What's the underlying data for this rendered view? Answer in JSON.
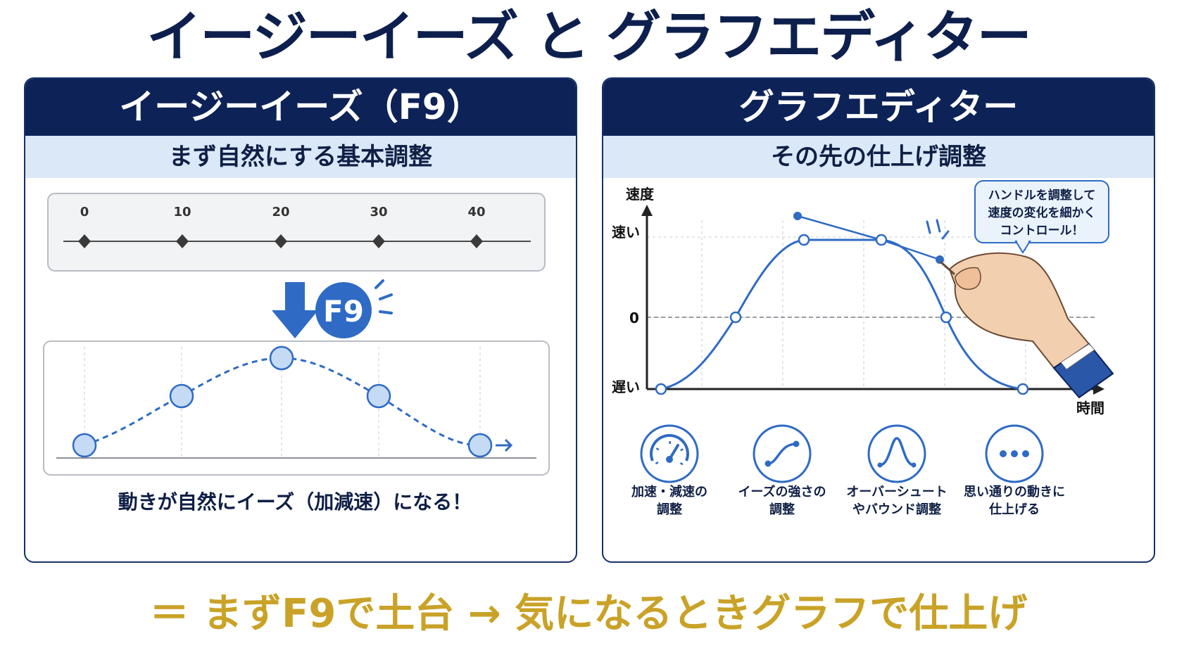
{
  "title": "イージーイーズ と グラフエディター",
  "left_panel": {
    "header": "イージーイーズ（F9）",
    "subtitle": "まず自然にする基本調整",
    "timeline_ticks": [
      "0",
      "10",
      "20",
      "30",
      "40"
    ],
    "badge": "F9",
    "caption": "動きが自然にイーズ（加減速）になる！"
  },
  "right_panel": {
    "header": "グラフエディター",
    "subtitle": "その先の仕上げ調整",
    "y_axis_label": "速度",
    "y_fast": "速い",
    "y_zero": "0",
    "y_slow": "遅い",
    "x_axis_label": "時間",
    "callout_lines": [
      "ハンドルを調整して",
      "速度の変化を細かく",
      "コントロール！"
    ],
    "features": [
      {
        "icon": "gauge-icon",
        "lines": [
          "加速・減速の",
          "調整"
        ]
      },
      {
        "icon": "s-curve-icon",
        "lines": [
          "イーズの強さの",
          "調整"
        ]
      },
      {
        "icon": "bell-curve-icon",
        "lines": [
          "オーバーシュート",
          "やバウンド調整"
        ]
      },
      {
        "icon": "dots-icon",
        "lines": [
          "思い通りの動きに",
          "仕上げる"
        ]
      }
    ]
  },
  "footer": "＝ まずF9で土台 → 気になるときグラフで仕上げ",
  "colors": {
    "navy": "#0d2257",
    "light_blue": "#dbe8f8",
    "accent_blue": "#2f6bc4",
    "gold": "#c9a227"
  }
}
